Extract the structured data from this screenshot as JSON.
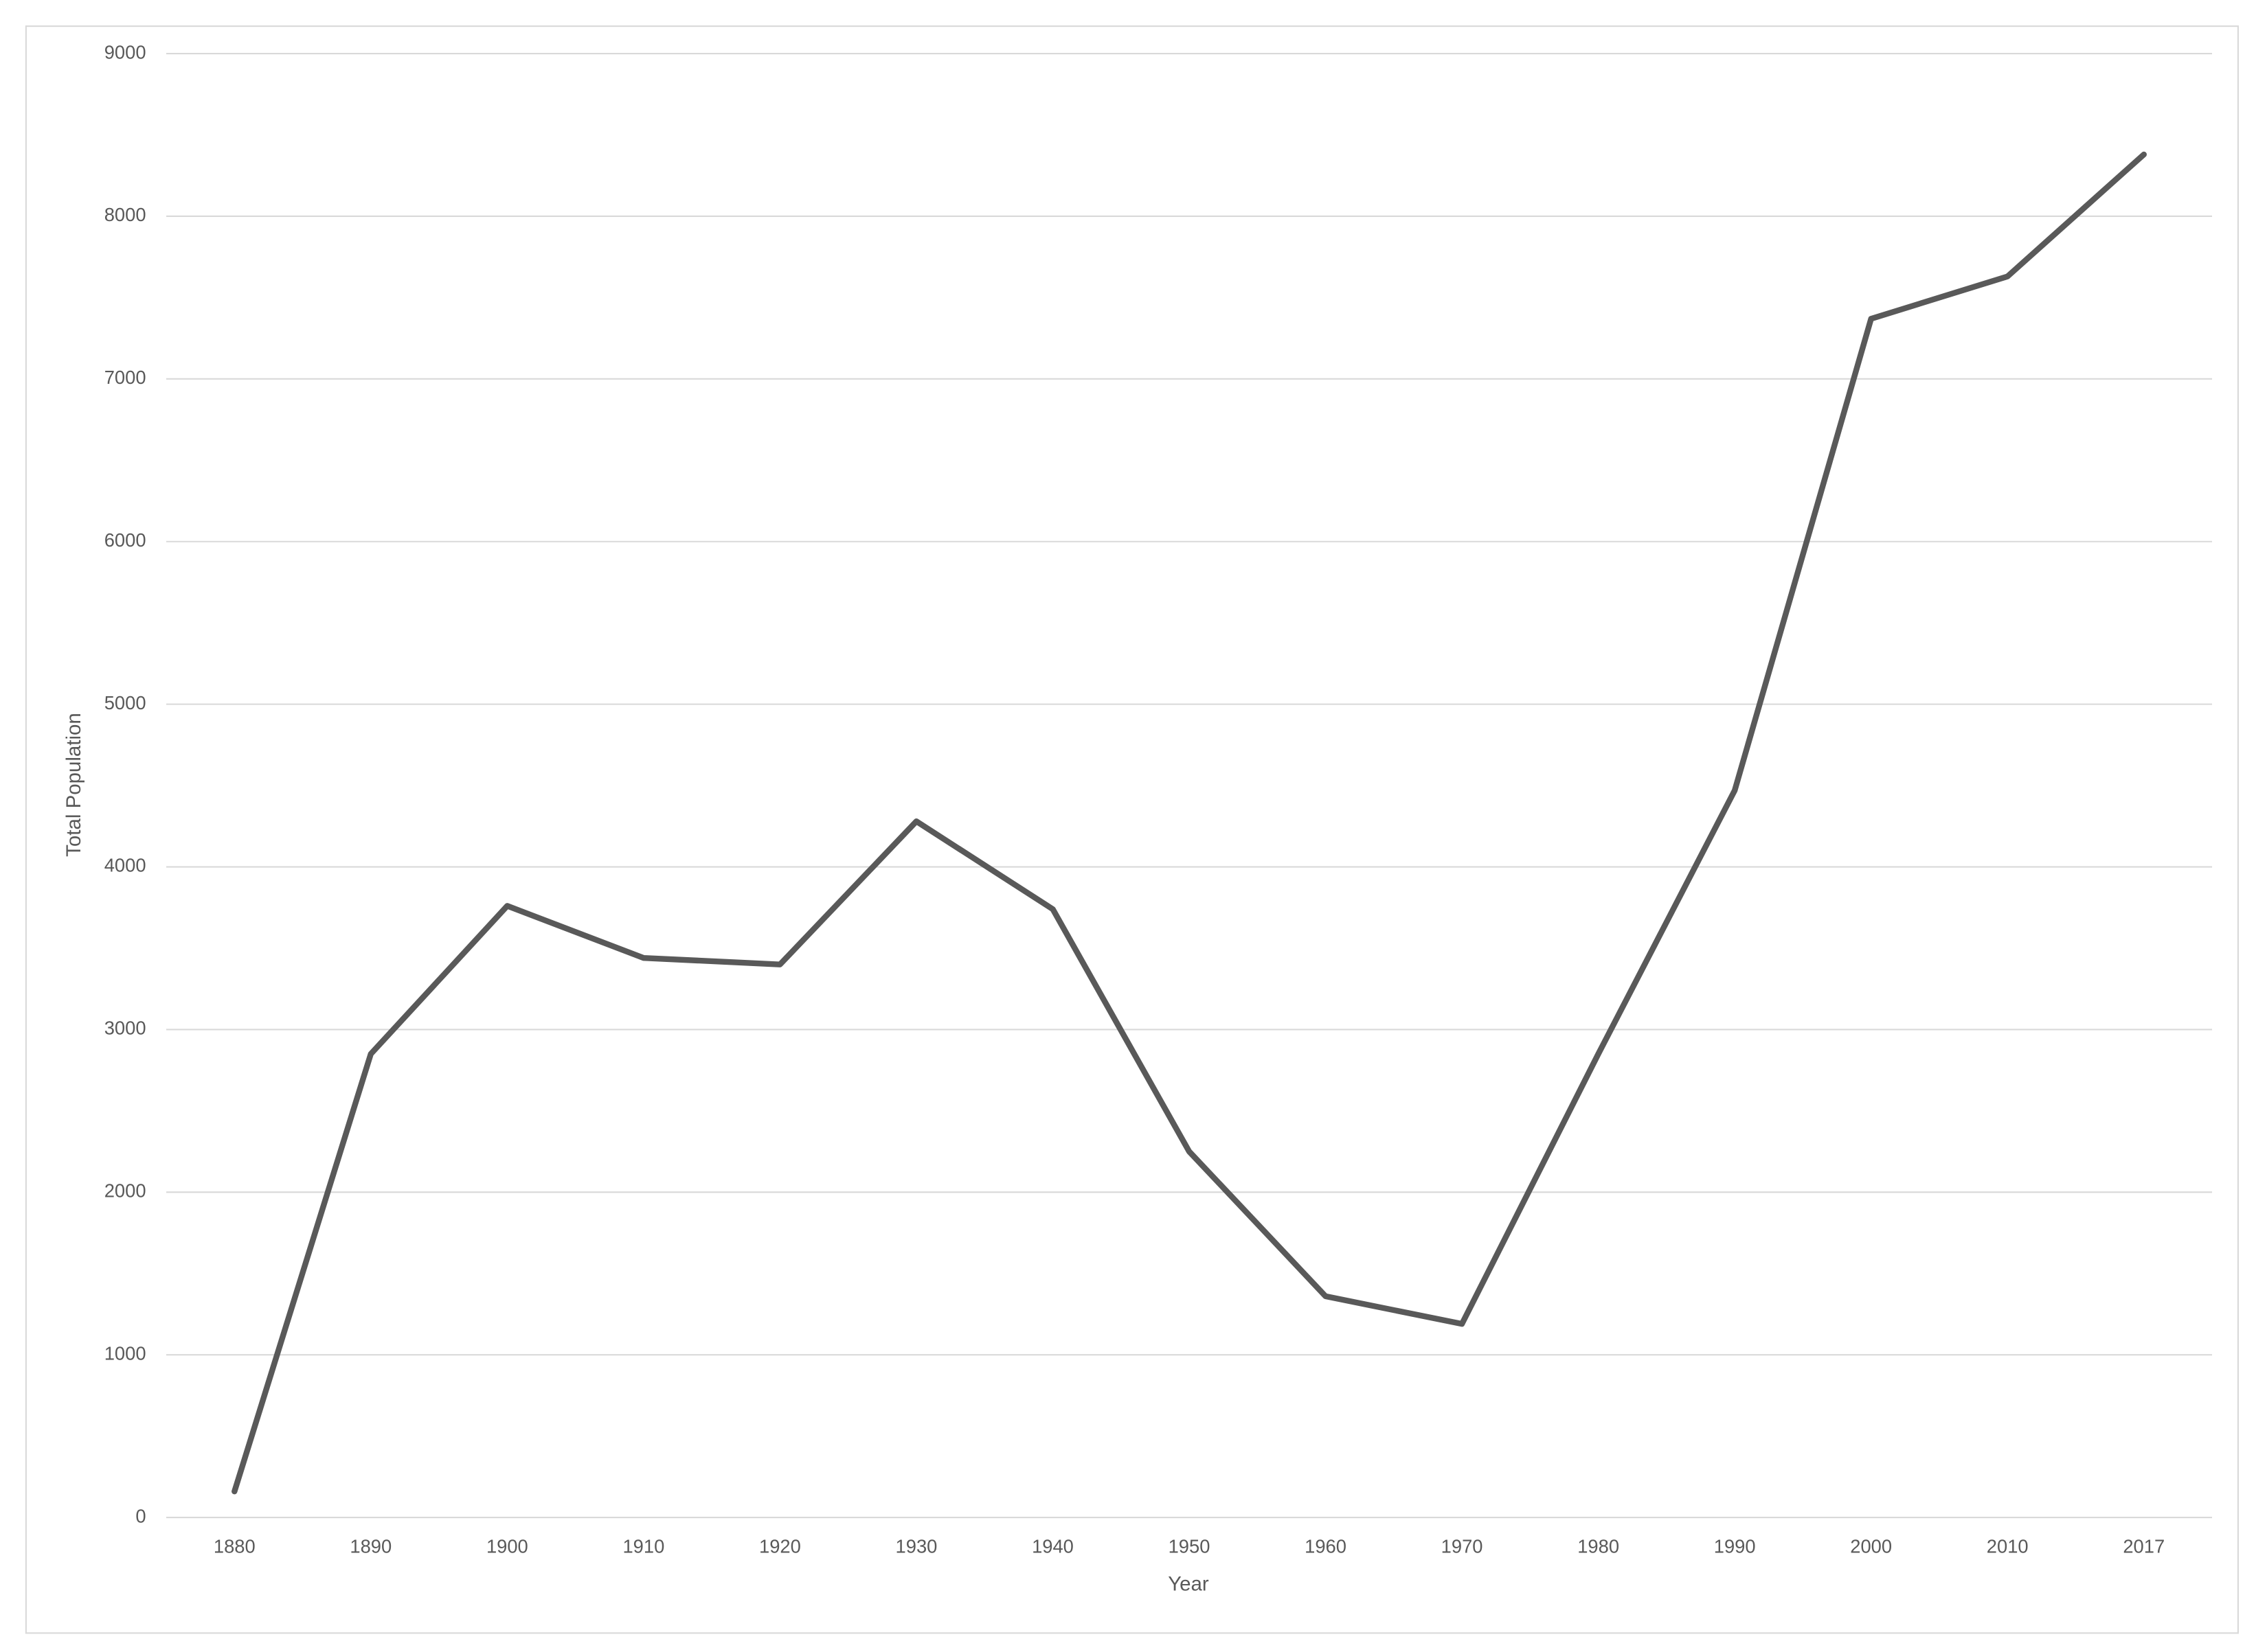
{
  "chart_data": {
    "type": "line",
    "x_label": "Year",
    "y_label": "Total Population",
    "categories": [
      "1880",
      "1890",
      "1900",
      "1910",
      "1920",
      "1930",
      "1940",
      "1950",
      "1960",
      "1970",
      "1980",
      "1990",
      "2000",
      "2010",
      "2017"
    ],
    "values": [
      160,
      2850,
      3760,
      3440,
      3400,
      4280,
      3740,
      2250,
      1360,
      1190,
      2850,
      4470,
      7370,
      7630,
      8380
    ],
    "color": "#595959",
    "ylim": [
      0,
      9000
    ],
    "yticks": [
      0,
      1000,
      2000,
      3000,
      4000,
      5000,
      6000,
      7000,
      8000,
      9000
    ],
    "grid": true
  }
}
